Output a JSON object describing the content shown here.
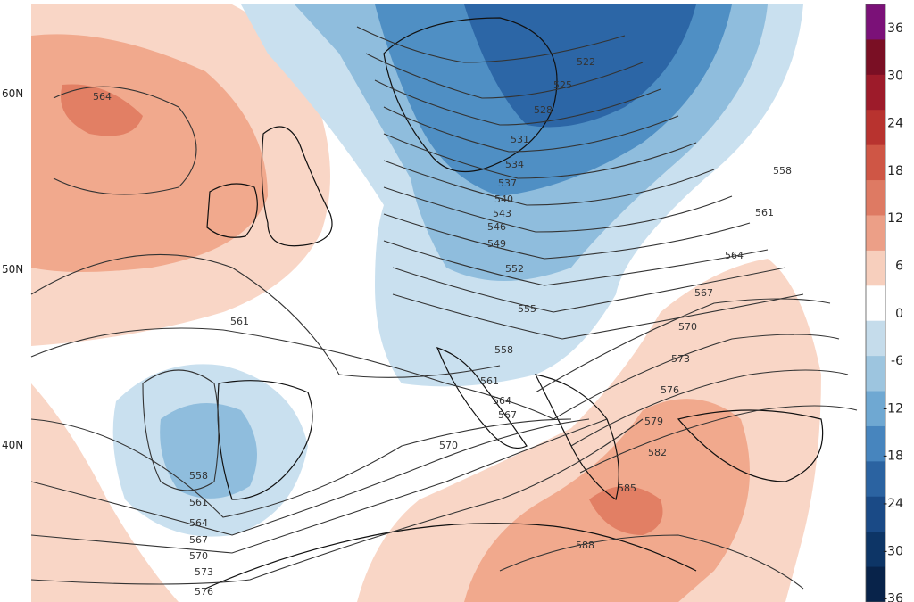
{
  "map": {
    "latitude_labels": [
      "60N",
      "50N",
      "40N"
    ],
    "contour_labels": [
      "564",
      "561",
      "558",
      "561",
      "564",
      "567",
      "570",
      "573",
      "576",
      "522",
      "525",
      "528",
      "531",
      "534",
      "537",
      "540",
      "543",
      "546",
      "549",
      "552",
      "555",
      "558",
      "561",
      "564",
      "567",
      "558",
      "561",
      "564",
      "567",
      "570",
      "573",
      "576",
      "579",
      "582",
      "585",
      "570",
      "588"
    ],
    "colorbar": {
      "ticks": [
        "36",
        "30",
        "24",
        "18",
        "12",
        "6",
        "0",
        "-6",
        "-12",
        "-18",
        "-24",
        "-30",
        "-36"
      ],
      "colors": [
        "#7b1178",
        "#7a0f24",
        "#9d1b2a",
        "#b8332f",
        "#cf5645",
        "#de7a63",
        "#ec9f87",
        "#f7cfbd",
        "#ffffff",
        "#c5dceb",
        "#9dc5df",
        "#6fa8d2",
        "#4785be",
        "#2b63a1",
        "#1a4a86",
        "#0d3566",
        "#08234a"
      ]
    },
    "anomaly_colors": {
      "warm_light": "#f9d6c6",
      "warm_mid": "#f1a98d",
      "warm_strong": "#e27f64",
      "cold_light": "#c9e0ef",
      "cold_mid": "#8fbddd",
      "cold_strong": "#4f8fc4",
      "cold_deep": "#2c66a6"
    }
  }
}
